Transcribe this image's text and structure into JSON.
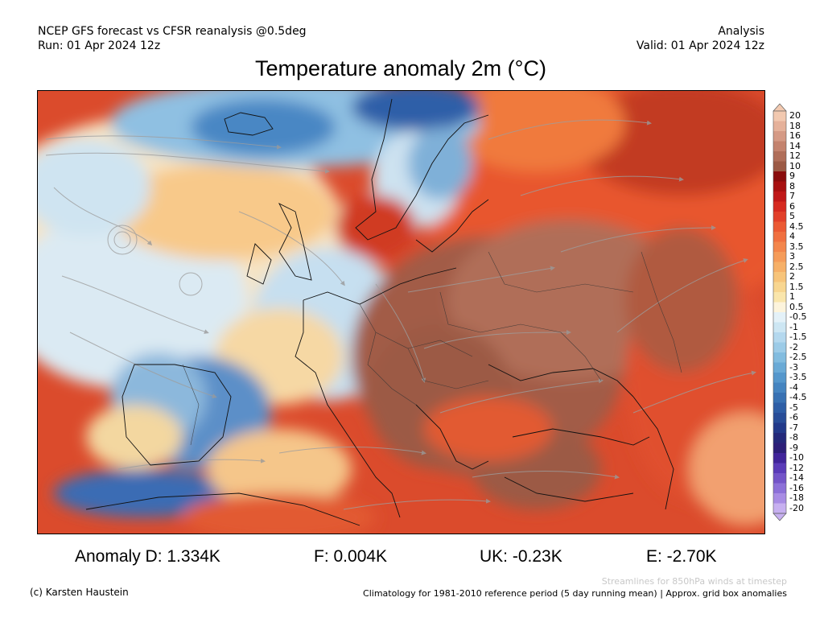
{
  "header": {
    "line1_left": "NCEP GFS forecast vs CFSR reanalysis @0.5deg",
    "line2_left": "Run: 01 Apr 2024 12z",
    "line1_right": "Analysis",
    "line2_right": "Valid: 01 Apr 2024 12z"
  },
  "title": "Temperature anomaly 2m (°C)",
  "colorbar": {
    "labels": [
      "20",
      "18",
      "16",
      "14",
      "12",
      "10",
      "9",
      "8",
      "7",
      "6",
      "5",
      "4.5",
      "4",
      "3.5",
      "3",
      "2.5",
      "2",
      "1.5",
      "1",
      "0.5",
      "-0.5",
      "-1",
      "-1.5",
      "-2",
      "-2.5",
      "-3",
      "-3.5",
      "-4",
      "-4.5",
      "-5",
      "-6",
      "-7",
      "-8",
      "-9",
      "-10",
      "-12",
      "-14",
      "-16",
      "-18",
      "-20"
    ],
    "colors": [
      "#f2c9b0",
      "#e5b19a",
      "#d59a85",
      "#c4836e",
      "#b06e59",
      "#9c5a45",
      "#8a0c0c",
      "#a81010",
      "#c01818",
      "#d62a20",
      "#e2402a",
      "#eb5a34",
      "#f07040",
      "#f3864c",
      "#f59c5a",
      "#f6b068",
      "#f7c47a",
      "#f8d690",
      "#fae6ac",
      "#fdf4dc",
      "#e4f1f8",
      "#cde6f3",
      "#b4d8ee",
      "#9ccbe7",
      "#82bcdf",
      "#6aaad6",
      "#5597cc",
      "#4584c0",
      "#3871b3",
      "#2e5ea6",
      "#284d98",
      "#22398a",
      "#23287a",
      "#2c1e78",
      "#40249a",
      "#5a3bb8",
      "#7354c8",
      "#8c70d8",
      "#a88ce4",
      "#c7b0f0"
    ]
  },
  "anomalies": {
    "d": "Anomaly D: 1.334K",
    "f": "F: 0.004K",
    "uk": "UK: -0.23K",
    "e": "E: -2.70K"
  },
  "footer": {
    "streamlines": "Streamlines for 850hPa winds at timestep",
    "copyright": "(c) Karsten Haustein",
    "climatology": "Climatology for 1981-2010 reference period (5 day running mean) | Approx. grid box anomalies"
  }
}
